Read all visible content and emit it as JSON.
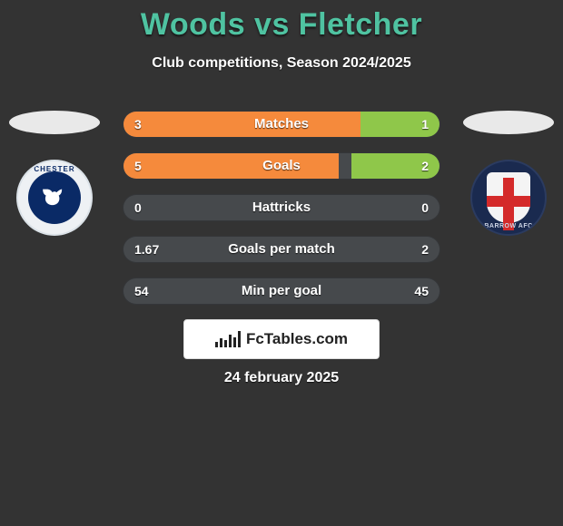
{
  "title": "Woods vs Fletcher",
  "subtitle": "Club competitions, Season 2024/2025",
  "date": "24 february 2025",
  "brand": "FcTables.com",
  "colors": {
    "background": "#333333",
    "title": "#4fc3a1",
    "left_bar": "#f58a3c",
    "right_bar": "#8fc74a",
    "track": "#46494c",
    "text": "#ffffff"
  },
  "rows": [
    {
      "label": "Matches",
      "left_val": "3",
      "right_val": "1",
      "left_pct": 75,
      "right_pct": 25
    },
    {
      "label": "Goals",
      "left_val": "5",
      "right_val": "2",
      "left_pct": 68,
      "right_pct": 28
    },
    {
      "label": "Hattricks",
      "left_val": "0",
      "right_val": "0",
      "left_pct": 0,
      "right_pct": 0
    },
    {
      "label": "Goals per match",
      "left_val": "1.67",
      "right_val": "2",
      "left_pct": 0,
      "right_pct": 0
    },
    {
      "label": "Min per goal",
      "left_val": "54",
      "right_val": "45",
      "left_pct": 0,
      "right_pct": 0
    }
  ],
  "left_club": {
    "name": "Chester",
    "ring_text": "CHESTER"
  },
  "right_club": {
    "name": "Barrow AFC",
    "ring_text": "BARROW AFC"
  },
  "brand_bars_heights": [
    6,
    10,
    8,
    14,
    11,
    18
  ]
}
